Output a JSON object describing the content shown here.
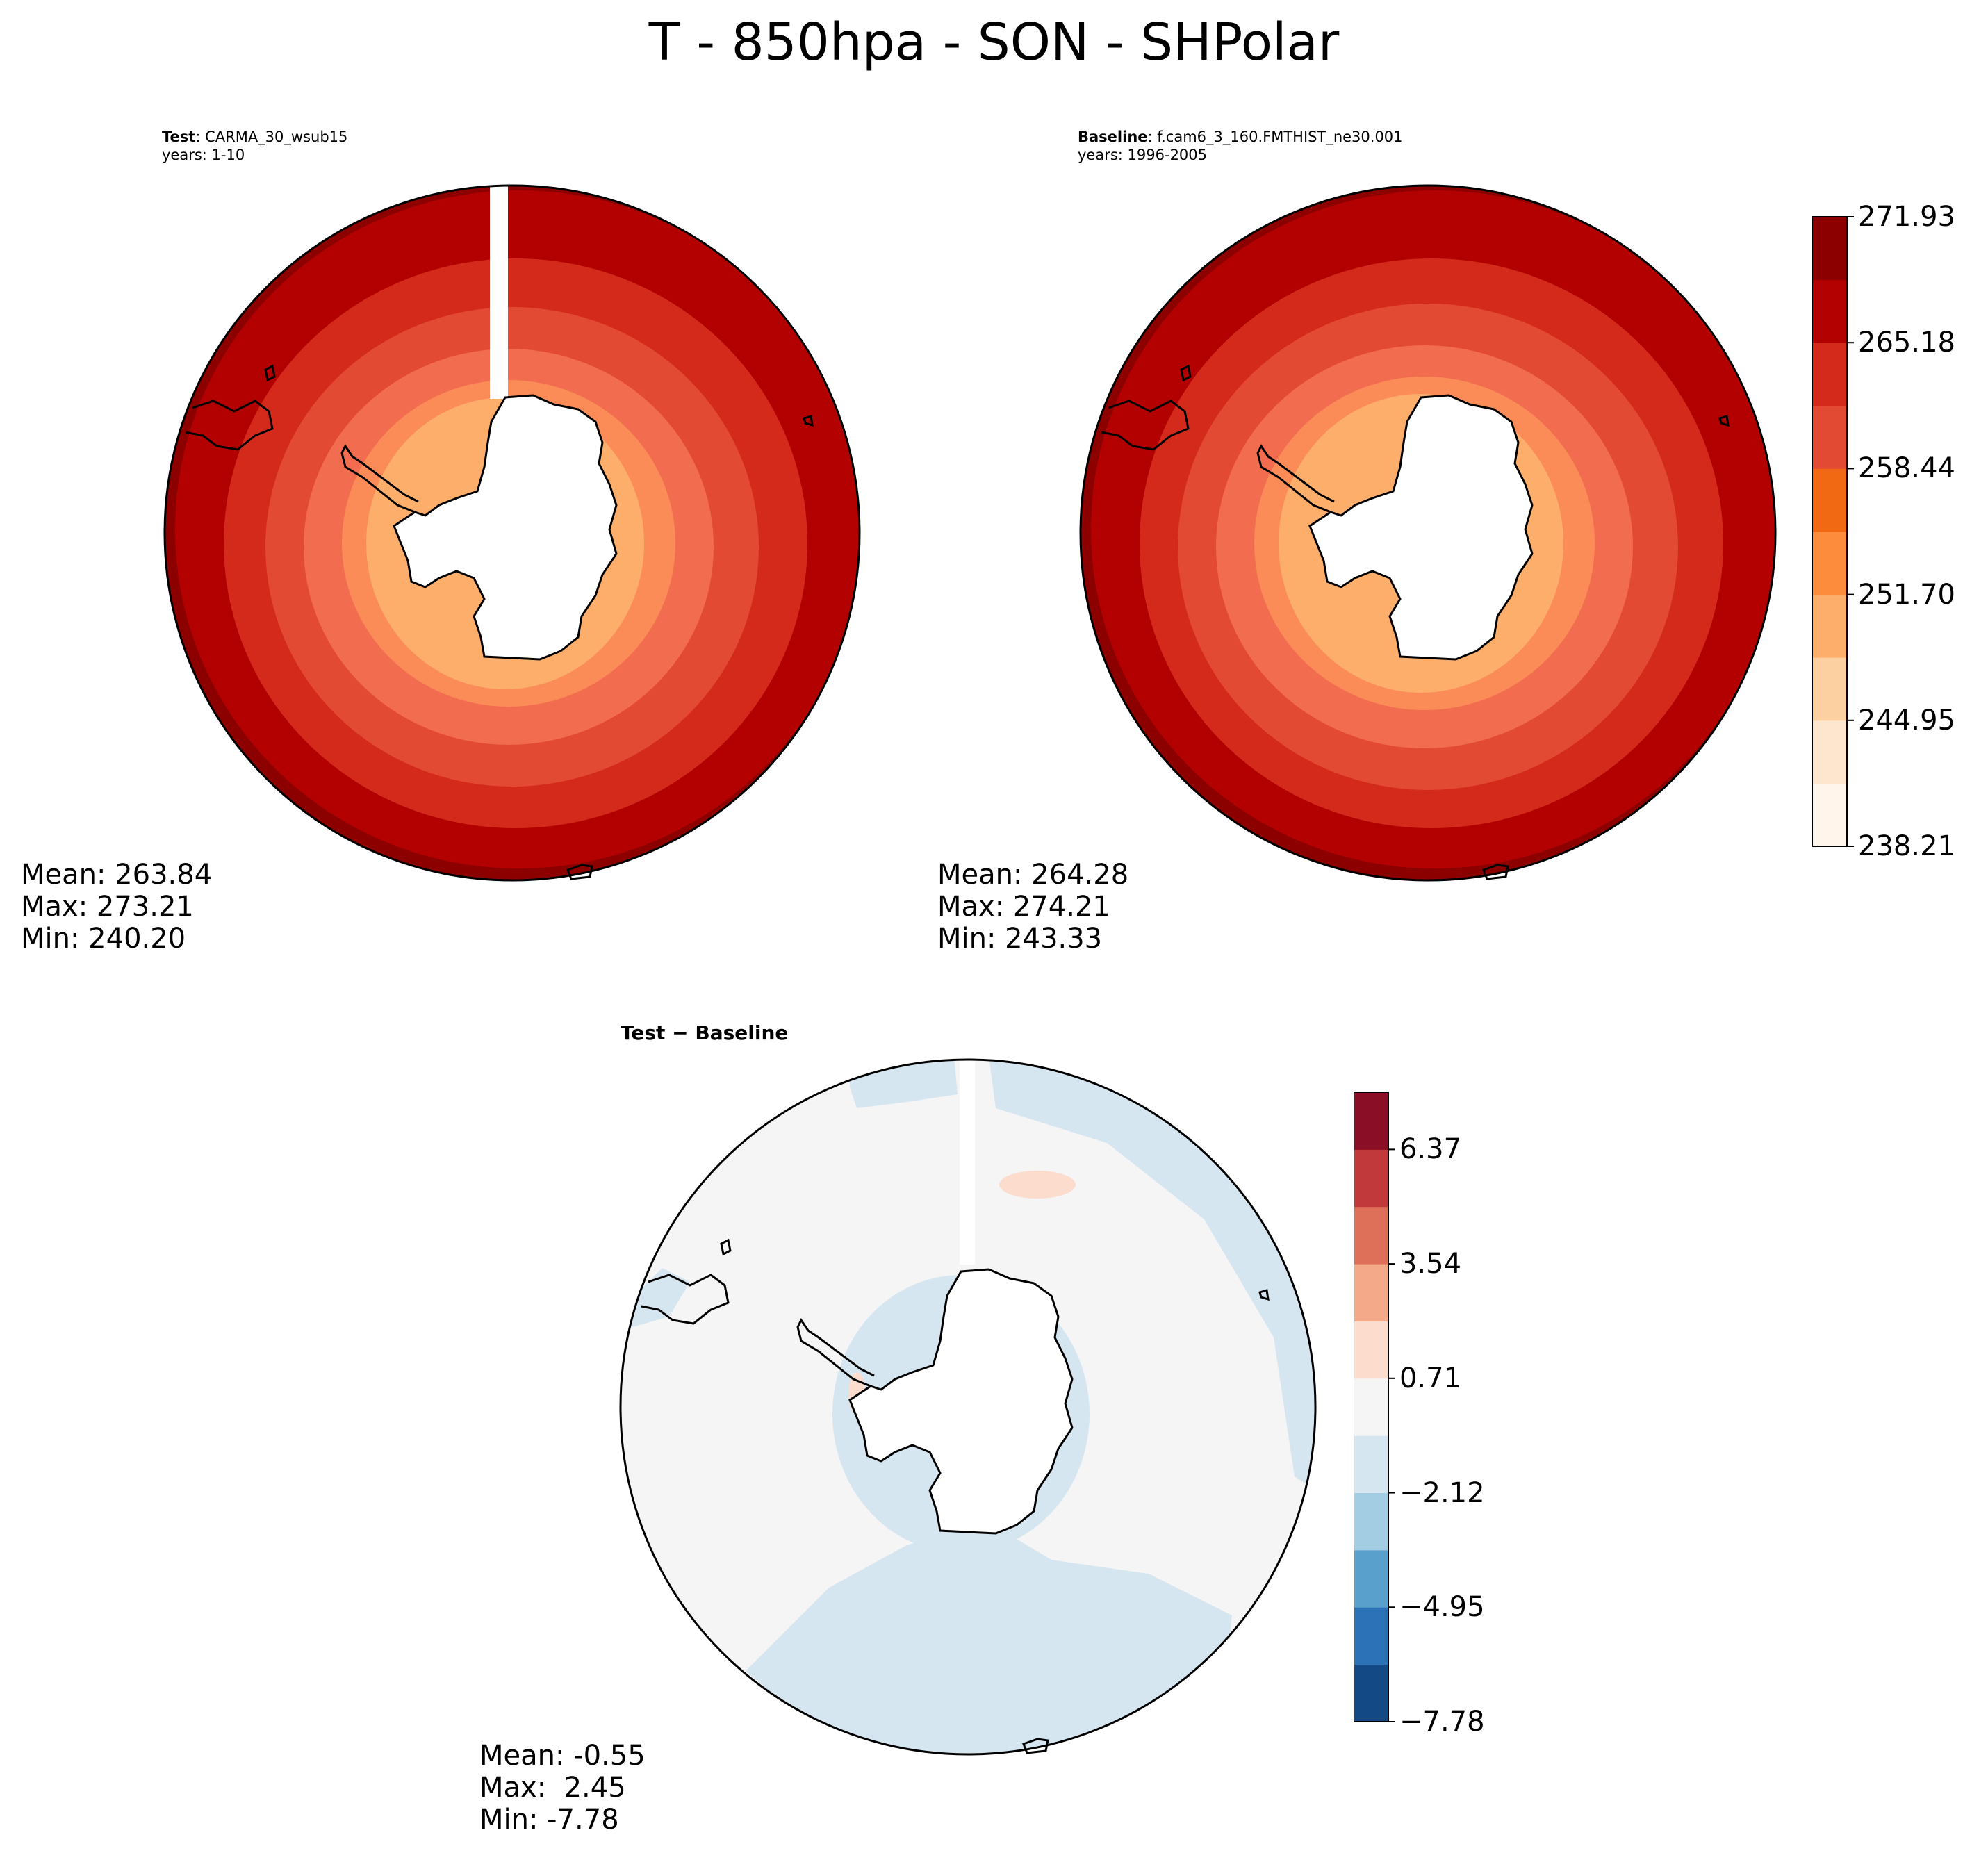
{
  "title": "T - 850hpa - SON - SHPolar",
  "panels": {
    "test": {
      "label_bold": "Test",
      "label_rest": ": CARMA_30_wsub15",
      "years": "years: 1-10",
      "stats": {
        "mean": "Mean: 263.84",
        "max": "Max: 273.21",
        "min": "Min: 240.20"
      }
    },
    "baseline": {
      "label_bold": "Baseline",
      "label_rest": ": f.cam6_3_160.FMTHIST_ne30.001",
      "years": "years: 1996-2005",
      "stats": {
        "mean": "Mean: 264.28",
        "max": "Max: 274.21",
        "min": "Min: 243.33"
      }
    },
    "diff": {
      "label_bold": "Test − Baseline",
      "stats": {
        "mean": "Mean: -0.55",
        "max": "Max:  2.45",
        "min": "Min: -7.78"
      }
    }
  },
  "colorbars": {
    "temperature": {
      "ticks": [
        "238.21",
        "244.95",
        "251.70",
        "258.44",
        "265.18",
        "271.93"
      ],
      "colors": [
        "#fff5eb",
        "#fee6ce",
        "#fdd0a2",
        "#fdae6b",
        "#fd8d3c",
        "#f16913",
        "#e34a33",
        "#d42a1c",
        "#b30000",
        "#8c0000"
      ]
    },
    "difference": {
      "ticks": [
        "−7.78",
        "−4.95",
        "−2.12",
        "0.71",
        "3.54",
        "6.37"
      ],
      "colors": [
        "#134a85",
        "#2b73b6",
        "#5aa0cc",
        "#a2cde3",
        "#d6e6f1",
        "#f5f5f5",
        "#fbdccd",
        "#f4a988",
        "#de7059",
        "#c1393a",
        "#8a0e26"
      ]
    }
  },
  "map_colors": {
    "temp_bands_outer_to_inner": [
      "#8c0000",
      "#b30000",
      "#d42a1c",
      "#e34a33",
      "#f26c4f",
      "#fb8c58",
      "#fdae6b",
      "#fdd0a2"
    ],
    "coast": "#000000",
    "land": "#ffffff"
  }
}
